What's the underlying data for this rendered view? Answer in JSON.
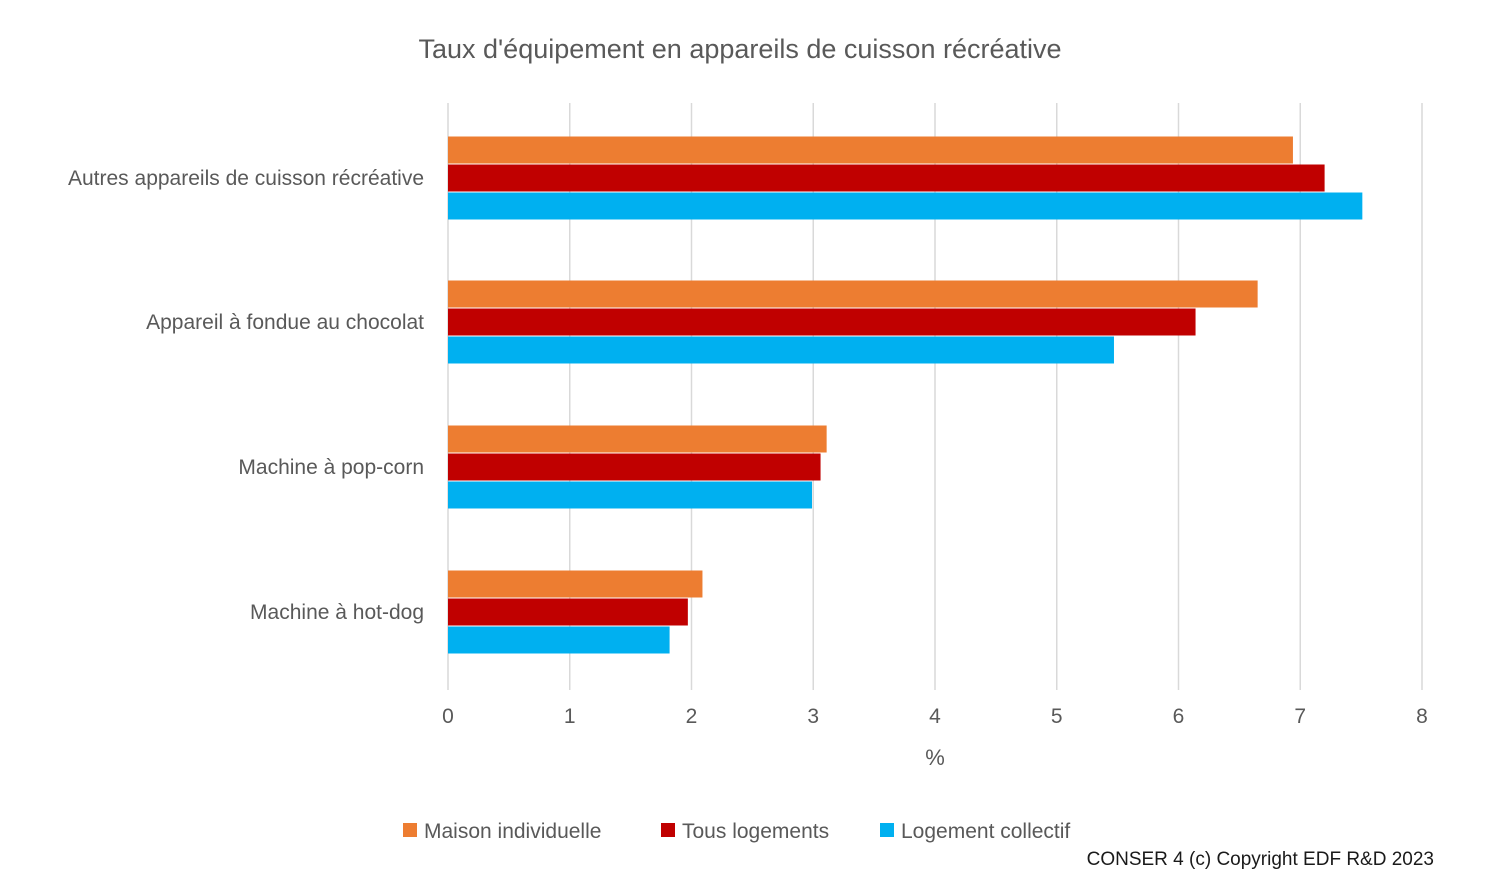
{
  "chart_data": {
    "type": "bar",
    "orientation": "horizontal",
    "title": "Taux d'équipement en appareils de cuisson récréative",
    "xlabel": "%",
    "ylabel": "",
    "xlim": [
      0,
      8
    ],
    "x_ticks": [
      "0",
      "1",
      "2",
      "3",
      "4",
      "5",
      "6",
      "7",
      "8"
    ],
    "grid": "vertical",
    "legend_position": "bottom",
    "categories": [
      "Autres appareils de cuisson récréative",
      "Appareil à fondue au chocolat",
      "Machine à pop-corn",
      "Machine à hot-dog"
    ],
    "series": [
      {
        "name": "Maison individuelle",
        "color": "#ED7D31",
        "values": [
          6.94,
          6.65,
          3.11,
          2.09
        ]
      },
      {
        "name": "Tous logements",
        "color": "#C00000",
        "values": [
          7.2,
          6.14,
          3.06,
          1.97
        ]
      },
      {
        "name": "Logement collectif",
        "color": "#00B0F0",
        "values": [
          7.51,
          5.47,
          2.99,
          1.82
        ]
      }
    ]
  },
  "footer": {
    "copyright": "CONSER 4 (c) Copyright EDF R&D 2023"
  }
}
